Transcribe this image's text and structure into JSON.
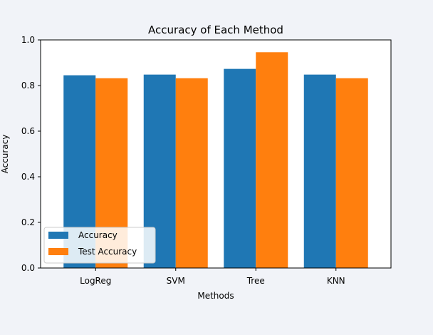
{
  "chart_data": {
    "type": "bar",
    "title": "Accuracy of Each Method",
    "xlabel": "Methods",
    "ylabel": "Accuracy",
    "categories": [
      "LogReg",
      "SVM",
      "Tree",
      "KNN"
    ],
    "series": [
      {
        "name": "Accuracy",
        "color": "#1f77b4",
        "values": [
          0.845,
          0.848,
          0.873,
          0.848
        ]
      },
      {
        "name": "Test Accuracy",
        "color": "#ff7f0e",
        "values": [
          0.832,
          0.832,
          0.946,
          0.832
        ]
      }
    ],
    "ylim": [
      0,
      1.0
    ],
    "yticks": [
      "0.0",
      "0.2",
      "0.4",
      "0.6",
      "0.8",
      "1.0"
    ],
    "grid": false,
    "legend_position": "lower-left"
  }
}
